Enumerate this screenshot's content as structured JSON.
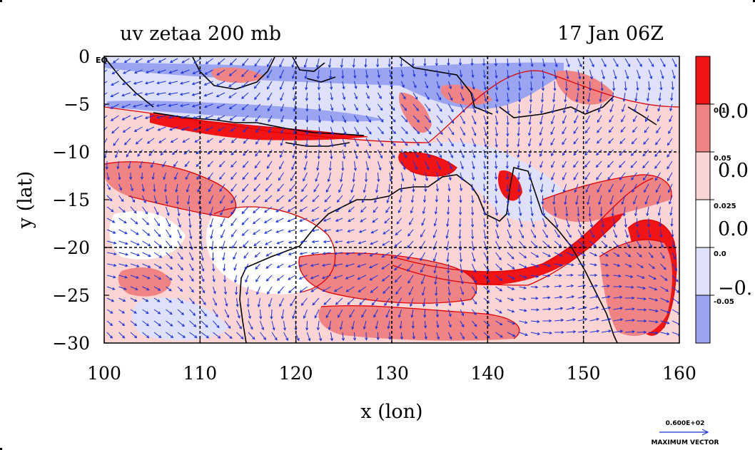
{
  "chart_data": {
    "type": "heatmap",
    "title_left": "uv zetaa 200 mb",
    "title_right": "17 Jan 06Z",
    "xlabel": "x (lon)",
    "ylabel": "y (lat)",
    "xlim": [
      100,
      160
    ],
    "ylim": [
      -30,
      0
    ],
    "x_ticks": [
      100,
      110,
      120,
      130,
      140,
      150,
      160
    ],
    "y_ticks": [
      0,
      -5,
      -10,
      -15,
      -20,
      -25,
      -30
    ],
    "x_tick_labels": [
      "100",
      "110",
      "120",
      "130",
      "140",
      "150",
      "160"
    ],
    "y_tick_labels": [
      "0",
      "−5",
      "−10",
      "−15",
      "−20",
      "−25",
      "−30"
    ],
    "y_top_suffix": "EQ",
    "grid_lons": [
      110,
      120,
      130,
      140,
      150
    ],
    "grid_lats": [
      -10,
      -20
    ],
    "grid": true,
    "colorbar": {
      "levels": [
        "-0.05",
        "0.0",
        "0.025",
        "0.05",
        "0.1"
      ],
      "big_labels": [
        "0.0",
        "0.0",
        "0.0",
        "−0."
      ],
      "colors": [
        "#9aa4f0",
        "#dfe1fb",
        "#ffffff",
        "#fbd4d4",
        "#f08484",
        "#f21414"
      ]
    },
    "vector_legend": {
      "value": "0.600E+02",
      "label": "MAXIMUM VECTOR"
    },
    "colors": {
      "vector": "#1c32d8",
      "coast": "#000000",
      "contour": "#e00000",
      "grid": "#000000"
    }
  }
}
